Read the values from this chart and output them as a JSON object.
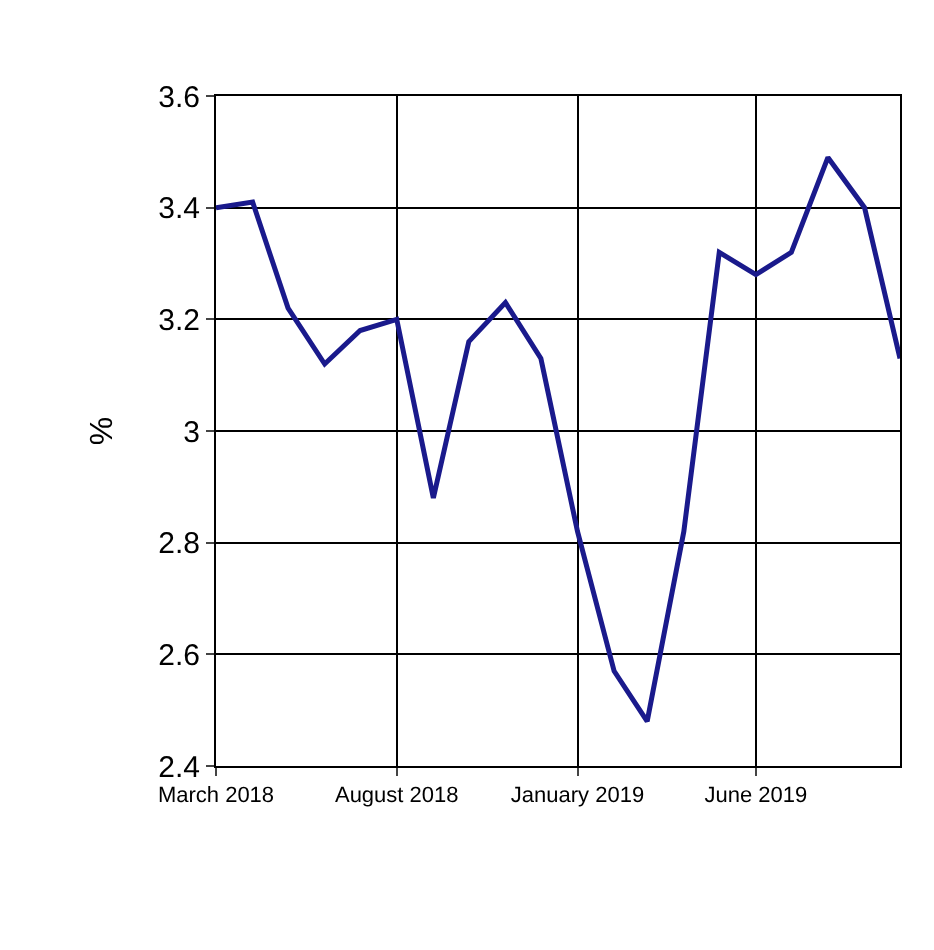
{
  "chart_data": {
    "type": "line",
    "ylabel": "%",
    "x": [
      "2018-03",
      "2018-04",
      "2018-05",
      "2018-06",
      "2018-07",
      "2018-08",
      "2018-09",
      "2018-10",
      "2018-11",
      "2018-12",
      "2019-01",
      "2019-02",
      "2019-03",
      "2019-04",
      "2019-05",
      "2019-06",
      "2019-07",
      "2019-08",
      "2019-09",
      "2019-10"
    ],
    "series": [
      {
        "color": "#1a1a8c",
        "values": [
          3.4,
          3.41,
          3.22,
          3.12,
          3.18,
          3.2,
          2.88,
          3.16,
          3.23,
          3.13,
          2.82,
          2.57,
          2.48,
          2.82,
          3.32,
          3.28,
          3.32,
          3.49,
          3.4,
          3.13
        ]
      }
    ],
    "xlim": [
      "2018-03",
      "2019-10"
    ],
    "xticks": [
      {
        "value": "2018-03",
        "label": "March 2018"
      },
      {
        "value": "2018-08",
        "label": "August 2018"
      },
      {
        "value": "2019-01",
        "label": "January 2019"
      },
      {
        "value": "2019-06",
        "label": "June 2019"
      }
    ],
    "ylim": [
      2.4,
      3.6
    ],
    "yticks": [
      2.4,
      2.6,
      2.8,
      3,
      3.2,
      3.4,
      3.6
    ],
    "grid": true,
    "legend": false,
    "marker": "none",
    "line_style": "solid"
  }
}
